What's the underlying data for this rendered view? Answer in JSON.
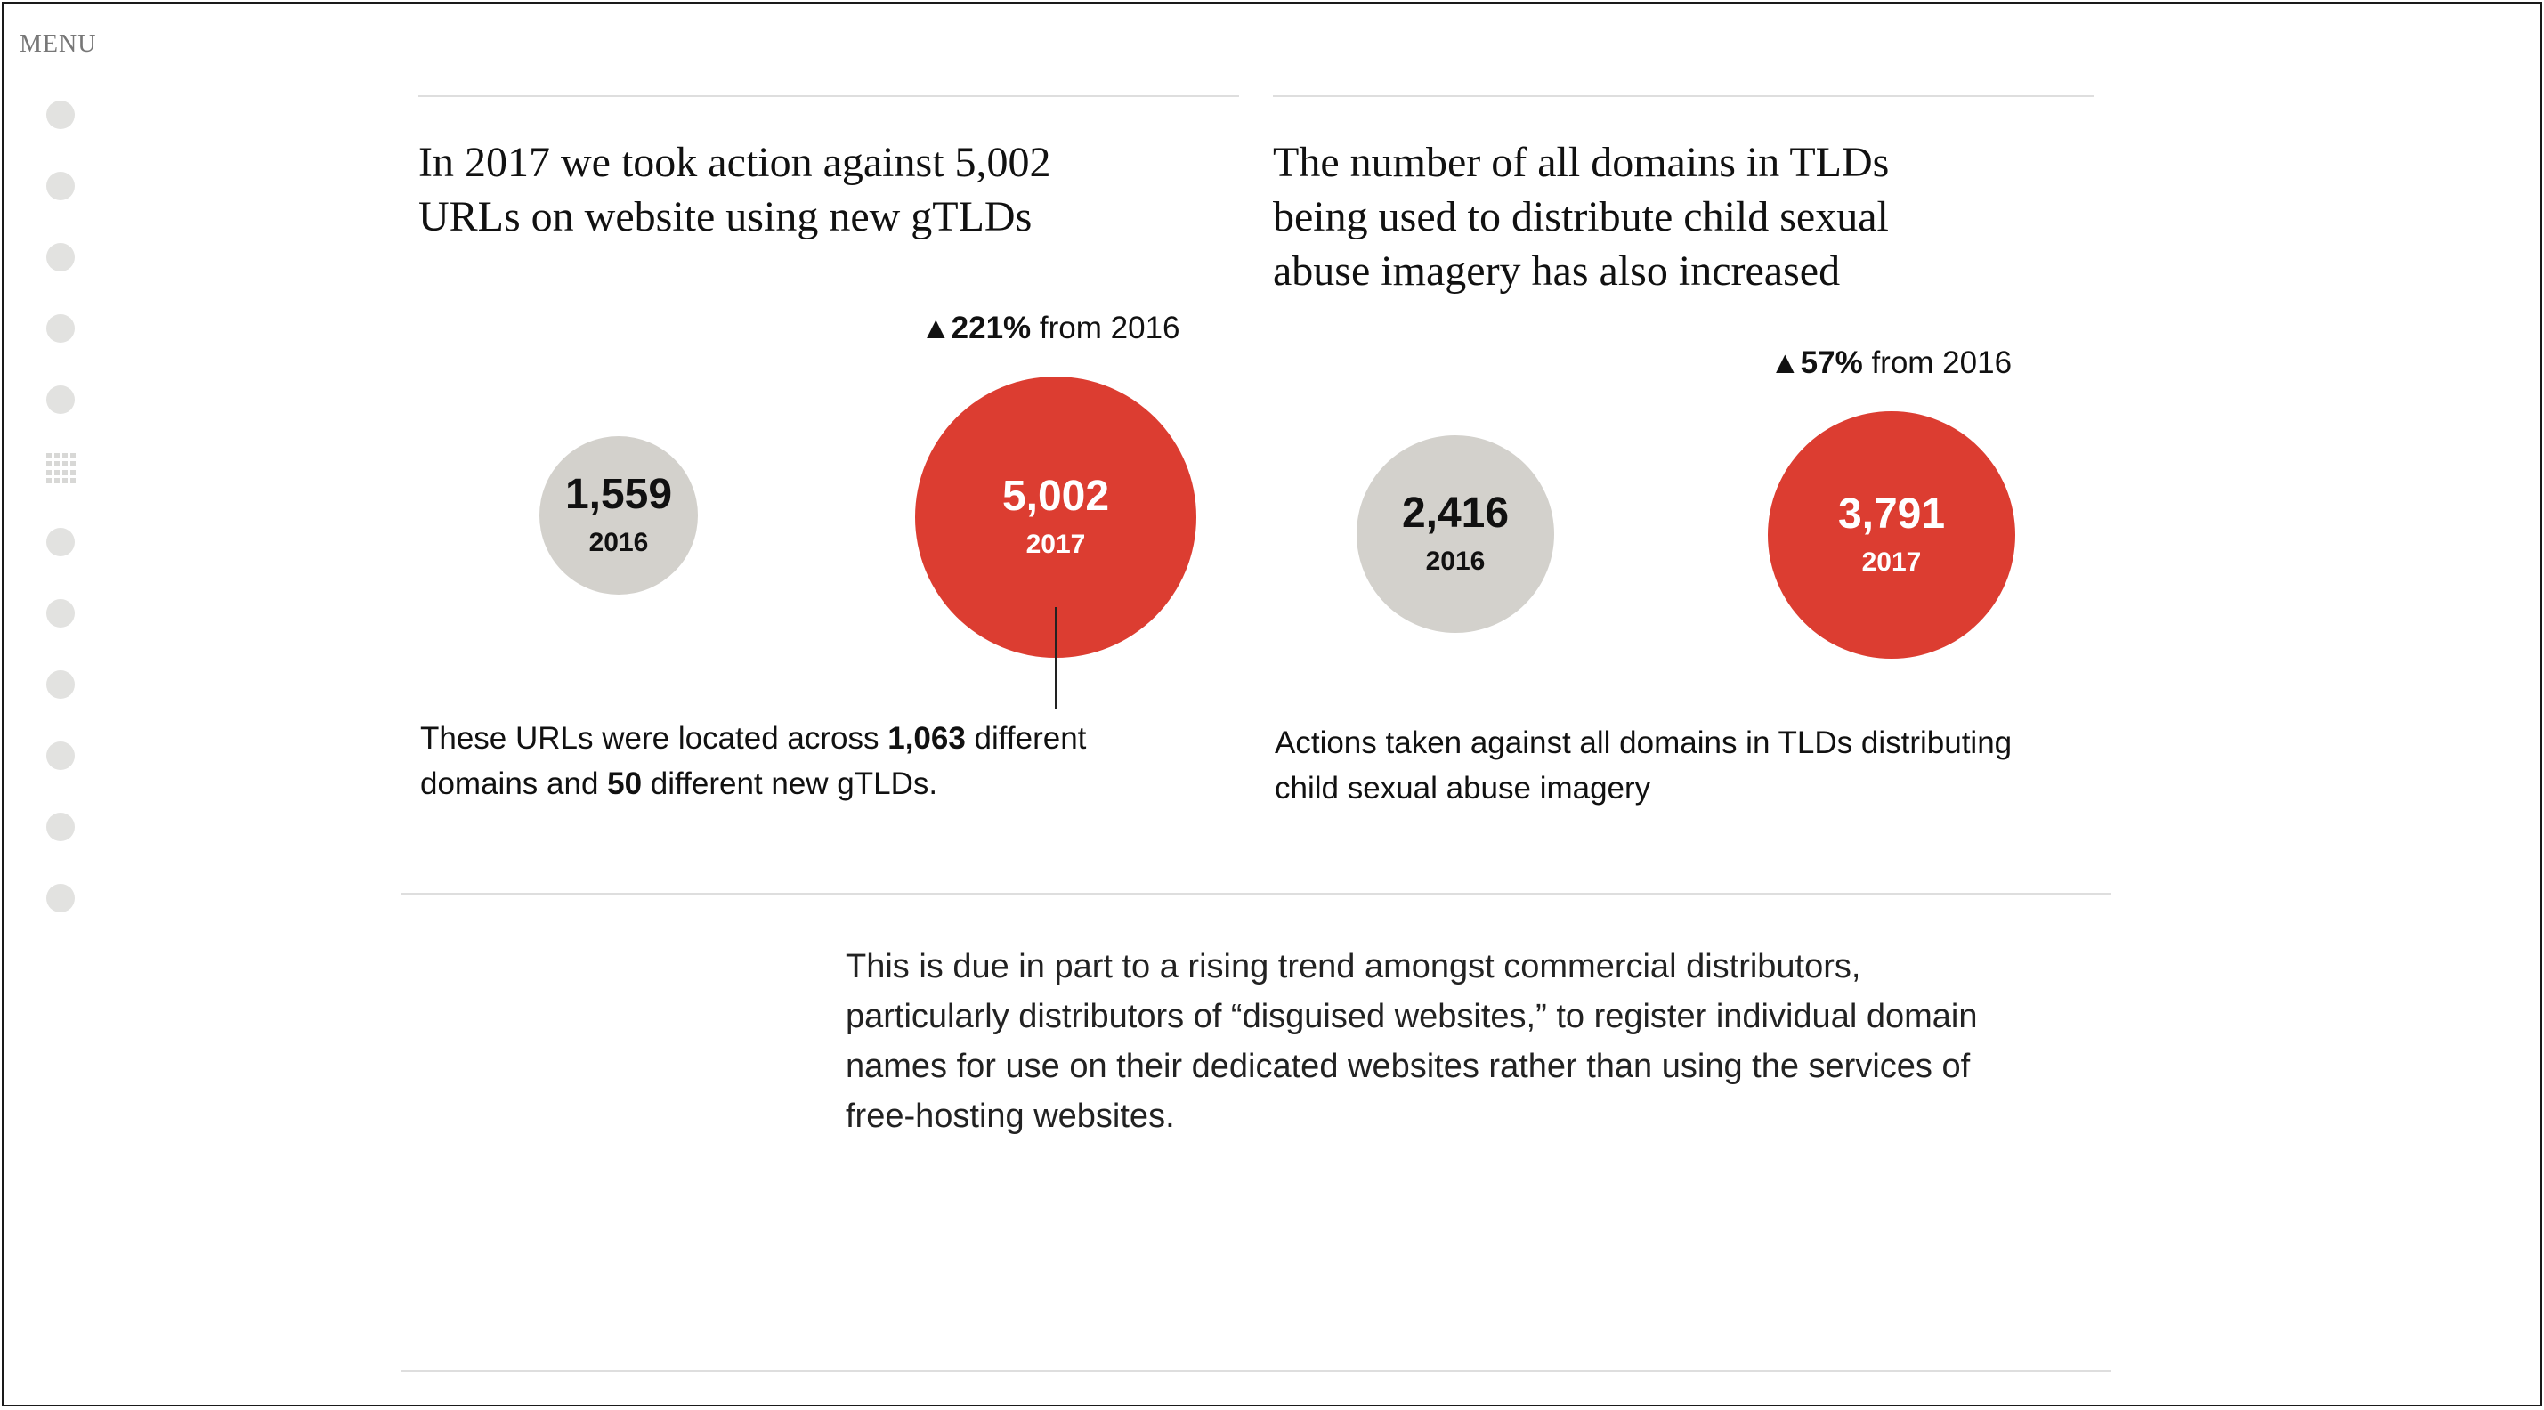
{
  "menu": {
    "label": "MENU"
  },
  "left_panel": {
    "heading_line1": "In 2017 we took action against 5,002",
    "heading_line2": "URLs on website using new gTLDs",
    "change_arrow": "▲",
    "change_value": "221%",
    "change_suffix": " from 2016",
    "circle_2016": {
      "value": "1,559",
      "year": "2016"
    },
    "circle_2017": {
      "value": "5,002",
      "year": "2017"
    },
    "caption_a": "These URLs were located across ",
    "caption_b": "1,063",
    "caption_c": " different",
    "caption_d": "domains and ",
    "caption_e": "50",
    "caption_f": " different new gTLDs."
  },
  "right_panel": {
    "heading_line1": "The number of all domains in TLDs",
    "heading_line2": "being used to distribute child sexual",
    "heading_line3": "abuse imagery has also increased",
    "change_arrow": "▲",
    "change_value": "57%",
    "change_suffix": " from 2016",
    "circle_2016": {
      "value": "2,416",
      "year": "2016"
    },
    "circle_2017": {
      "value": "3,791",
      "year": "2017"
    },
    "caption_line1": "Actions taken against all domains in TLDs distributing",
    "caption_line2": "child sexual abuse imagery"
  },
  "body_text": {
    "line1": "This is due in part to a rising trend amongst commercial distributors,",
    "line2": "particularly distributors of “disguised websites,” to register individual domain",
    "line3": "names for use on their dedicated websites rather than using the services of",
    "line4": "free-hosting websites."
  },
  "colors": {
    "accent_red": "#dc3d31",
    "neutral_grey": "#d3d1cc"
  }
}
